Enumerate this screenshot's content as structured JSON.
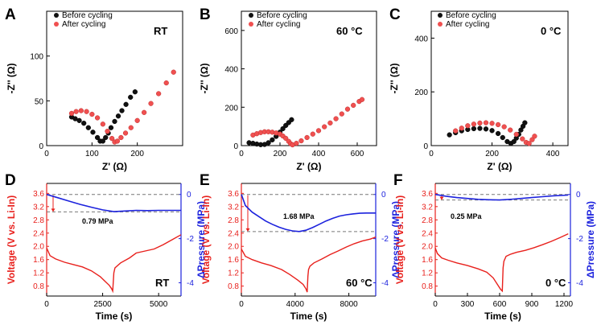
{
  "colors": {
    "before": "#111111",
    "after": "#f05050",
    "voltage": "#e8201c",
    "pressure": "#1c22dd",
    "axis": "#000000",
    "dashed": "#777777"
  },
  "chart_data": [
    {
      "panel": "A",
      "type": "scatter",
      "condition": "RT",
      "xlabel": "Z' (Ω)",
      "ylabel": "-Z'' (Ω)",
      "xlim": [
        0,
        300
      ],
      "ylim": [
        0,
        150
      ],
      "xticks": [
        "0",
        "100",
        "200"
      ],
      "yticks": [
        "0",
        "50",
        "100"
      ],
      "legend": [
        "Before cycling",
        "After cycling"
      ],
      "series": [
        {
          "name": "Before cycling",
          "x": [
            55,
            63,
            72,
            82,
            92,
            102,
            112,
            118,
            124,
            130,
            136,
            142,
            150,
            158,
            166,
            175,
            185,
            195
          ],
          "y": [
            32,
            30,
            28,
            25,
            20,
            15,
            9,
            5,
            5,
            9,
            14,
            20,
            27,
            33,
            39,
            46,
            54,
            60
          ]
        },
        {
          "name": "After cycling",
          "x": [
            55,
            65,
            76,
            88,
            100,
            112,
            124,
            134,
            144,
            150,
            156,
            164,
            174,
            186,
            200,
            215,
            230,
            247,
            264,
            280
          ],
          "y": [
            36,
            38,
            39,
            38,
            35,
            31,
            24,
            16,
            8,
            4,
            5,
            9,
            14,
            20,
            28,
            37,
            47,
            58,
            70,
            82
          ]
        }
      ]
    },
    {
      "panel": "B",
      "type": "scatter",
      "condition": "60 °C",
      "xlabel": "Z' (Ω)",
      "ylabel": "-Z'' (Ω)",
      "xlim": [
        0,
        700
      ],
      "ylim": [
        0,
        700
      ],
      "xticks": [
        "0",
        "200",
        "400",
        "600"
      ],
      "yticks": [
        "0",
        "200",
        "400",
        "600"
      ],
      "legend": [
        "Before cycling",
        "After cycling"
      ],
      "series": [
        {
          "name": "Before cycling",
          "x": [
            40,
            60,
            80,
            100,
            120,
            140,
            160,
            180,
            200,
            215,
            230,
            245,
            260
          ],
          "y": [
            15,
            12,
            8,
            5,
            6,
            15,
            30,
            48,
            70,
            88,
            105,
            120,
            135
          ]
        },
        {
          "name": "After cycling",
          "x": [
            60,
            80,
            100,
            120,
            140,
            160,
            180,
            200,
            215,
            230,
            245,
            255,
            265,
            285,
            310,
            340,
            370,
            400,
            430,
            460,
            490,
            520,
            550,
            580,
            610,
            625
          ],
          "y": [
            55,
            62,
            68,
            72,
            72,
            70,
            66,
            60,
            50,
            38,
            22,
            10,
            4,
            12,
            25,
            42,
            60,
            78,
            98,
            118,
            140,
            165,
            190,
            210,
            230,
            240
          ]
        }
      ]
    },
    {
      "panel": "C",
      "type": "scatter",
      "condition": "0 °C",
      "xlabel": "Z' (Ω)",
      "ylabel": "-Z'' (Ω)",
      "xlim": [
        0,
        450
      ],
      "ylim": [
        0,
        500
      ],
      "xticks": [
        "0",
        "200",
        "400"
      ],
      "yticks": [
        "0",
        "200",
        "400"
      ],
      "legend": [
        "Before cycling",
        "After cycling"
      ],
      "series": [
        {
          "name": "Before cycling",
          "x": [
            60,
            80,
            100,
            120,
            140,
            160,
            180,
            200,
            220,
            235,
            250,
            262,
            272,
            280,
            288,
            295,
            302,
            308
          ],
          "y": [
            40,
            48,
            55,
            60,
            63,
            64,
            62,
            56,
            45,
            30,
            15,
            8,
            15,
            28,
            42,
            58,
            72,
            85
          ]
        },
        {
          "name": "After cycling",
          "x": [
            80,
            100,
            120,
            140,
            160,
            180,
            200,
            220,
            240,
            260,
            280,
            300,
            312,
            322,
            332,
            340
          ],
          "y": [
            55,
            65,
            74,
            80,
            84,
            85,
            83,
            78,
            70,
            58,
            42,
            25,
            12,
            8,
            22,
            35
          ]
        }
      ]
    },
    {
      "panel": "D",
      "type": "line",
      "condition": "RT",
      "xlabel": "Time (s)",
      "ylabel_left": "Voltage (V vs. Li-In)",
      "ylabel_right": "ΔPressure (MPa)",
      "xlim": [
        0,
        6000
      ],
      "ylim_left": [
        0.5,
        3.9
      ],
      "ylim_right": [
        -4.6,
        0.5
      ],
      "xticks": [
        "0",
        "2500",
        "5000"
      ],
      "yticks_left": [
        "0.8",
        "1.2",
        "1.6",
        "2.0",
        "2.4",
        "2.8",
        "3.2",
        "3.6"
      ],
      "yticks_right": [
        "0",
        "-2",
        "-4"
      ],
      "annotation": "0.79 MPa",
      "dashed_levels": [
        0,
        -0.79
      ],
      "voltage": {
        "x": [
          0,
          150,
          400,
          800,
          1200,
          1600,
          2000,
          2400,
          2800,
          2900,
          2950,
          3000,
          3050,
          3300,
          3700,
          4000,
          4400,
          4800,
          5200,
          5600,
          6000
        ],
        "y": [
          1.95,
          1.72,
          1.62,
          1.52,
          1.45,
          1.38,
          1.26,
          1.08,
          0.82,
          0.72,
          0.65,
          1.2,
          1.35,
          1.5,
          1.65,
          1.8,
          1.86,
          1.92,
          2.05,
          2.2,
          2.35
        ]
      },
      "pressure": {
        "x": [
          0,
          500,
          1000,
          1500,
          2000,
          2500,
          3000,
          3500,
          4000,
          4500,
          5000,
          5500,
          6000
        ],
        "y": [
          0,
          -0.15,
          -0.3,
          -0.45,
          -0.58,
          -0.7,
          -0.78,
          -0.75,
          -0.72,
          -0.73,
          -0.72,
          -0.72,
          -0.72
        ]
      }
    },
    {
      "panel": "E",
      "type": "line",
      "condition": "60 °C",
      "xlabel": "Time (s)",
      "ylabel_left": "Voltage (V vs. Li-In)",
      "ylabel_right": "ΔPressure (MPa)",
      "xlim": [
        0,
        10000
      ],
      "ylim_left": [
        0.5,
        3.9
      ],
      "ylim_right": [
        -4.6,
        0.5
      ],
      "xticks": [
        "0",
        "4000",
        "8000"
      ],
      "yticks_left": [
        "0.8",
        "1.2",
        "1.6",
        "2.0",
        "2.4",
        "2.8",
        "3.2",
        "3.6"
      ],
      "yticks_right": [
        "0",
        "-2",
        "-4"
      ],
      "annotation": "1.68 MPa",
      "dashed_levels": [
        0,
        -1.68
      ],
      "voltage": {
        "x": [
          0,
          300,
          800,
          1500,
          2200,
          3000,
          3600,
          4200,
          4600,
          4800,
          4900,
          4950,
          5000,
          5100,
          5400,
          6000,
          6600,
          7200,
          7800,
          8400,
          9000,
          9600,
          10000
        ],
        "y": [
          1.92,
          1.7,
          1.6,
          1.5,
          1.42,
          1.3,
          1.15,
          0.98,
          0.85,
          0.72,
          0.62,
          1.1,
          1.3,
          1.4,
          1.5,
          1.62,
          1.75,
          1.86,
          1.98,
          2.08,
          2.16,
          2.22,
          2.28
        ]
      },
      "pressure": {
        "x": [
          0,
          300,
          800,
          1300,
          1800,
          2300,
          2800,
          3300,
          3800,
          4300,
          4800,
          5300,
          5800,
          6300,
          6800,
          7300,
          7800,
          8300,
          8800,
          9300,
          10000
        ],
        "y": [
          0,
          -0.5,
          -0.8,
          -1.0,
          -1.2,
          -1.35,
          -1.48,
          -1.58,
          -1.65,
          -1.68,
          -1.62,
          -1.5,
          -1.35,
          -1.2,
          -1.08,
          -0.98,
          -0.92,
          -0.88,
          -0.85,
          -0.84,
          -0.84
        ]
      }
    },
    {
      "panel": "F",
      "type": "line",
      "condition": "0 °C",
      "xlabel": "Time (s)",
      "ylabel_left": "Voltage (V vs. Li-In)",
      "ylabel_right": "ΔPressure (MPa)",
      "xlim": [
        0,
        1260
      ],
      "ylim_left": [
        0.5,
        3.9
      ],
      "ylim_right": [
        -4.6,
        0.5
      ],
      "xticks": [
        "0",
        "300",
        "600",
        "900",
        "1200"
      ],
      "yticks_left": [
        "0.8",
        "1.2",
        "1.6",
        "2.0",
        "2.4",
        "2.8",
        "3.2",
        "3.6"
      ],
      "yticks_right": [
        "0",
        "-2",
        "-4"
      ],
      "annotation": "0.25 MPa",
      "dashed_levels": [
        0,
        -0.25
      ],
      "voltage": {
        "x": [
          0,
          20,
          60,
          120,
          200,
          300,
          400,
          480,
          540,
          580,
          610,
          625,
          632,
          640,
          660,
          700,
          760,
          840,
          920,
          1000,
          1080,
          1160,
          1240
        ],
        "y": [
          1.95,
          1.78,
          1.65,
          1.58,
          1.5,
          1.42,
          1.32,
          1.22,
          1.05,
          0.85,
          0.7,
          0.65,
          1.35,
          1.55,
          1.7,
          1.76,
          1.82,
          1.88,
          1.96,
          2.05,
          2.15,
          2.26,
          2.38
        ]
      },
      "pressure": {
        "x": [
          0,
          100,
          200,
          300,
          400,
          500,
          600,
          700,
          800,
          900,
          1000,
          1100,
          1240
        ],
        "y": [
          0,
          -0.08,
          -0.14,
          -0.18,
          -0.22,
          -0.24,
          -0.25,
          -0.22,
          -0.18,
          -0.14,
          -0.1,
          -0.06,
          -0.03
        ]
      }
    }
  ]
}
